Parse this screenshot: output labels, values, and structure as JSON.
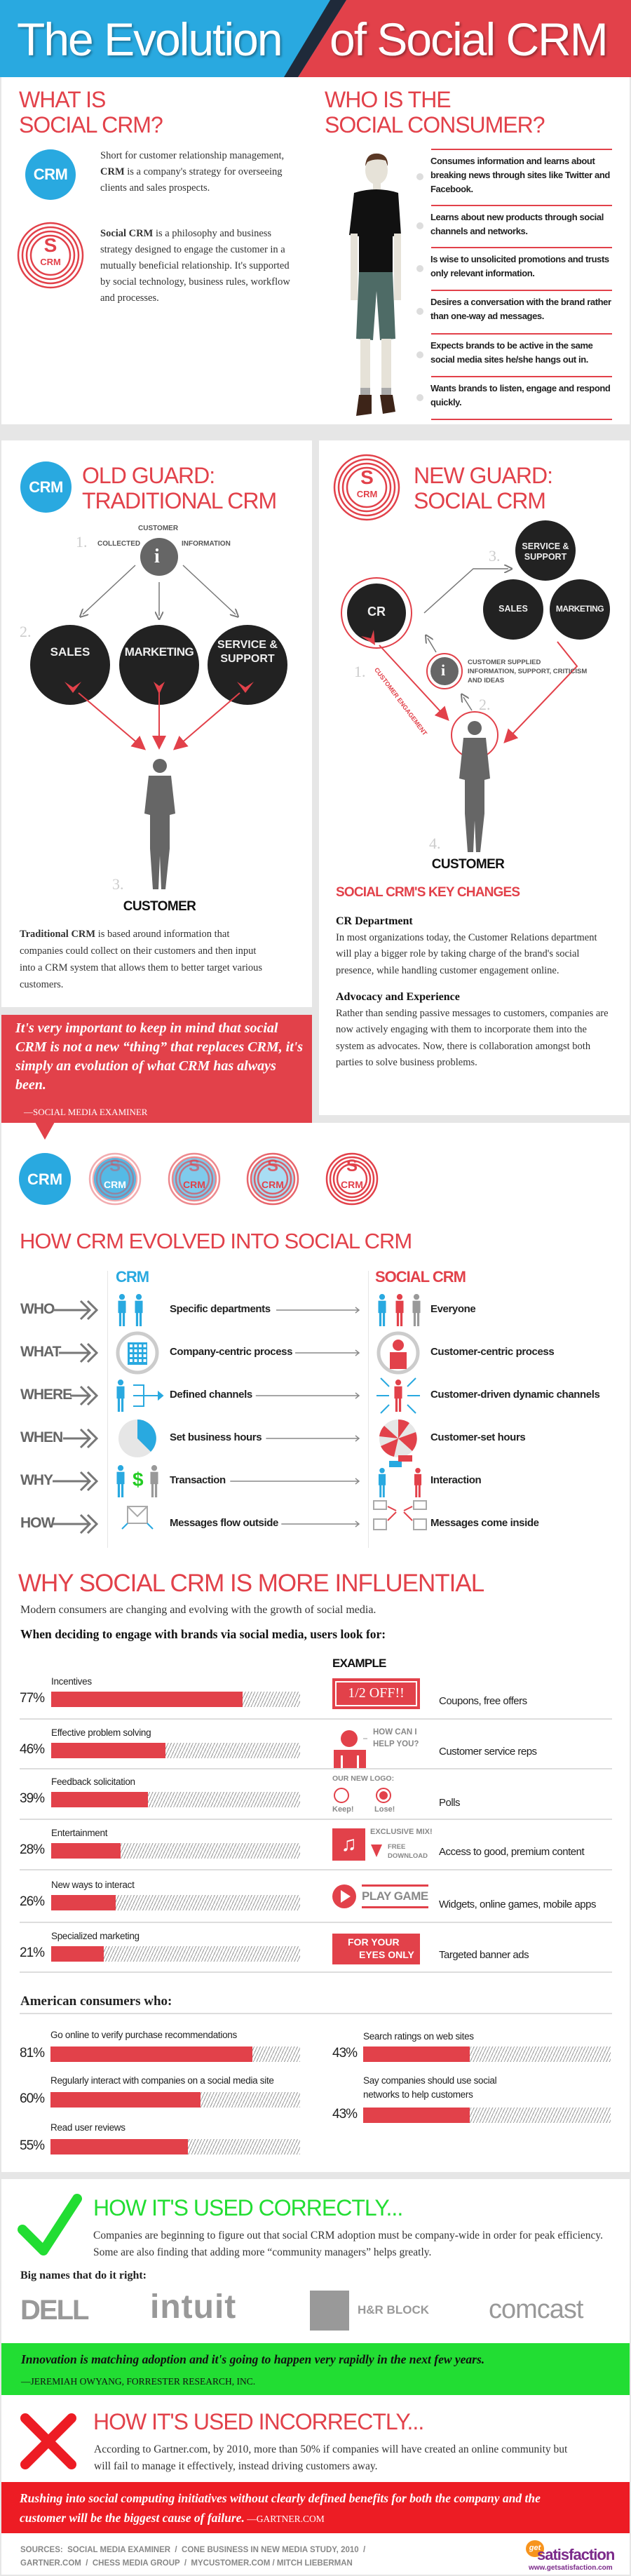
{
  "header": {
    "title_left": "The Evolution",
    "title_right": "of Social CRM"
  },
  "colors": {
    "blue": "#29a9e0",
    "red": "#e2414a",
    "dark": "#222222",
    "green": "#22dd33"
  },
  "what_is": {
    "heading_line1": "WHAT IS",
    "heading_line2": "SOCIAL CRM?",
    "crm_badge": "CRM",
    "scrm_badge_s": "S",
    "scrm_badge_crm": "CRM",
    "crm_def_before": "Short for customer relationship management, ",
    "crm_def_bold": "CRM",
    "crm_def_after": " is a company's strategy for overseeing clients and sales prospects.",
    "social_def_bold": "Social CRM",
    "social_def_after": " is a philosophy and business strategy designed to engage the customer in a mutually beneficial relationship. It's supported by social technology, business rules, workflow and processes."
  },
  "consumer": {
    "heading_line1": "WHO IS THE",
    "heading_line2": "SOCIAL CONSUMER?",
    "bullets": [
      "Consumes information and learns about breaking news through sites like Twitter and Facebook.",
      "Learns about new products through social channels and networks.",
      "Is wise to unsolicited promotions and trusts only relevant information.",
      "Desires a conversation with the brand rather than one-way ad messages.",
      "Expects brands to be active in the same social media sites he/she hangs out in.",
      "Wants brands to listen, engage and respond quickly."
    ]
  },
  "old_guard": {
    "title1": "OLD GUARD:",
    "title2": "TRADITIONAL CRM",
    "badge": "CRM",
    "customer_top": "CUSTOMER",
    "collected": "COLLECTED",
    "information": "INFORMATION",
    "info_glyph": "i",
    "steps": [
      "1.",
      "2.",
      "3."
    ],
    "circles": [
      "SALES",
      "MARKETING",
      "SERVICE & SUPPORT"
    ],
    "customer": "CUSTOMER",
    "para_bold": "Traditional CRM",
    "para_rest": " is based around information that companies could collect on their customers and then input into a CRM system that allows them to better target various customers."
  },
  "new_guard": {
    "title1": "NEW GUARD:",
    "title2": "SOCIAL CRM",
    "badge_s": "S",
    "badge_crm": "CRM",
    "cr": "CR",
    "circles": [
      "SERVICE & SUPPORT",
      "SALES",
      "MARKETING"
    ],
    "info_glyph": "i",
    "supplied": "CUSTOMER SUPPLIED INFORMATION, SUPPORT, CRITICISM AND IDEAS",
    "engagement": "CUSTOMER ENGAGEMENT",
    "steps": [
      "1.",
      "2.",
      "3.",
      "4."
    ],
    "customer": "CUSTOMER",
    "key_changes": "SOCIAL CRM'S KEY CHANGES",
    "items": [
      {
        "title": "CR Department",
        "body": "In most organizations today, the Customer Relations department will play a bigger role by taking charge of the brand's social presence, while handling customer engagement online."
      },
      {
        "title": "Advocacy and Experience",
        "body": "Rather than sending passive messages to customers, companies are now actively engaging with them to incorporate them into the system as advocates. Now, there is collaboration amongst both parties to solve business problems."
      }
    ]
  },
  "quote1": {
    "text": "It's very important to keep in mind that social CRM is not a new “thing” that replaces CRM, it's simply an evolution of what CRM has always been.",
    "attribution": "—SOCIAL MEDIA EXAMINER"
  },
  "evolution": {
    "badges": [
      "CRM",
      "CRM",
      "CRM",
      "CRM",
      "CRM"
    ],
    "badge_s": "S",
    "heading": "HOW CRM EVOLVED INTO SOCIAL CRM",
    "col_crm": "CRM",
    "col_social": "SOCIAL CRM",
    "rows": [
      {
        "q": "WHO",
        "crm": "Specific departments",
        "social": "Everyone"
      },
      {
        "q": "WHAT",
        "crm": "Company-centric process",
        "social": "Customer-centric process"
      },
      {
        "q": "WHERE",
        "crm": "Defined channels",
        "social": "Customer-driven dynamic channels"
      },
      {
        "q": "WHEN",
        "crm": "Set business hours",
        "social": "Customer-set hours"
      },
      {
        "q": "WHY",
        "crm": "Transaction",
        "social": "Interaction",
        "dollar": "$"
      },
      {
        "q": "HOW",
        "crm": "Messages flow outside",
        "social": "Messages come inside"
      }
    ]
  },
  "influential": {
    "heading": "WHY SOCIAL CRM IS MORE INFLUENTIAL",
    "intro": "Modern consumers are changing and evolving with the growth of social media.",
    "subheading": "When deciding to engage with brands via social media, users look for:",
    "example_label": "EXAMPLE",
    "rows": [
      {
        "label": "Incentives",
        "pct": "77%",
        "example": "Coupons, free offers"
      },
      {
        "label": "Effective problem solving",
        "pct": "46%",
        "example": "Customer service reps"
      },
      {
        "label": "Feedback solicitation",
        "pct": "39%",
        "example": "Polls"
      },
      {
        "label": "Entertainment",
        "pct": "28%",
        "example": "Access to good, premium content"
      },
      {
        "label": "New ways to interact",
        "pct": "26%",
        "example": "Widgets, online games, mobile apps"
      },
      {
        "label": "Specialized marketing",
        "pct": "21%",
        "example": "Targeted banner ads"
      }
    ],
    "coupon": "1/2 OFF!!",
    "rep_line1": "HOW CAN I",
    "rep_line2": "HELP YOU?",
    "poll_title": "OUR NEW LOGO:",
    "poll_keep": "Keep!",
    "poll_lose": "Lose!",
    "music_title": "EXCLUSIVE MIX!",
    "music_free": "FREE",
    "music_download": "DOWNLOAD",
    "game": "PLAY GAME",
    "banner_line1": "FOR YOUR",
    "banner_line2": "EYES ONLY"
  },
  "american": {
    "heading": "American consumers who:",
    "left": [
      {
        "label": "Go online to verify purchase recommendations",
        "pct": "81%"
      },
      {
        "label": "Regularly interact with companies on a social media site",
        "pct": "60%"
      },
      {
        "label": "Read user reviews",
        "pct": "55%"
      }
    ],
    "right": [
      {
        "label": "Search ratings on web sites",
        "pct": "43%"
      },
      {
        "label": "Say companies should use social networks to help customers",
        "pct": "43%"
      }
    ]
  },
  "correct": {
    "heading": "HOW IT'S USED CORRECTLY...",
    "para": "Companies are beginning to figure out that social CRM adoption must be company-wide in order for peak efficiency. Some are also finding that adding more “community managers” helps greatly.",
    "big_names": "Big names that do it right:",
    "logos": [
      "DELL",
      "intuit",
      "H&R BLOCK",
      "comcast"
    ],
    "quote": "Innovation is matching adoption and it's going to happen very rapidly in the next few years.",
    "attribution": " —JEREMIAH OWYANG, FORRESTER RESEARCH, INC."
  },
  "incorrect": {
    "heading": "HOW IT'S USED INCORRECTLY...",
    "para": "According to Gartner.com, by 2010, more than 50% if companies will have created an online community but will fail to manage it effectively, instead driving customers away.",
    "quote": "Rushing into social computing initiatives without clearly defined benefits for both the company and the customer will be the biggest cause of failure.",
    "attribution": " —GARTNER.COM"
  },
  "footer": {
    "sources_line1": "SOURCES:  SOCIAL MEDIA EXAMINER  /  CONE BUSINESS IN NEW MEDIA STUDY, 2010  /",
    "sources_line2": "GARTNER.COM  /  CHESS MEDIA GROUP  /  MYCUSTOMER.COM / MITCH LIEBERMAN",
    "logo_get": "get",
    "logo_satisfaction": "satisfaction",
    "logo_url": "www.getsatisfaction.com"
  }
}
